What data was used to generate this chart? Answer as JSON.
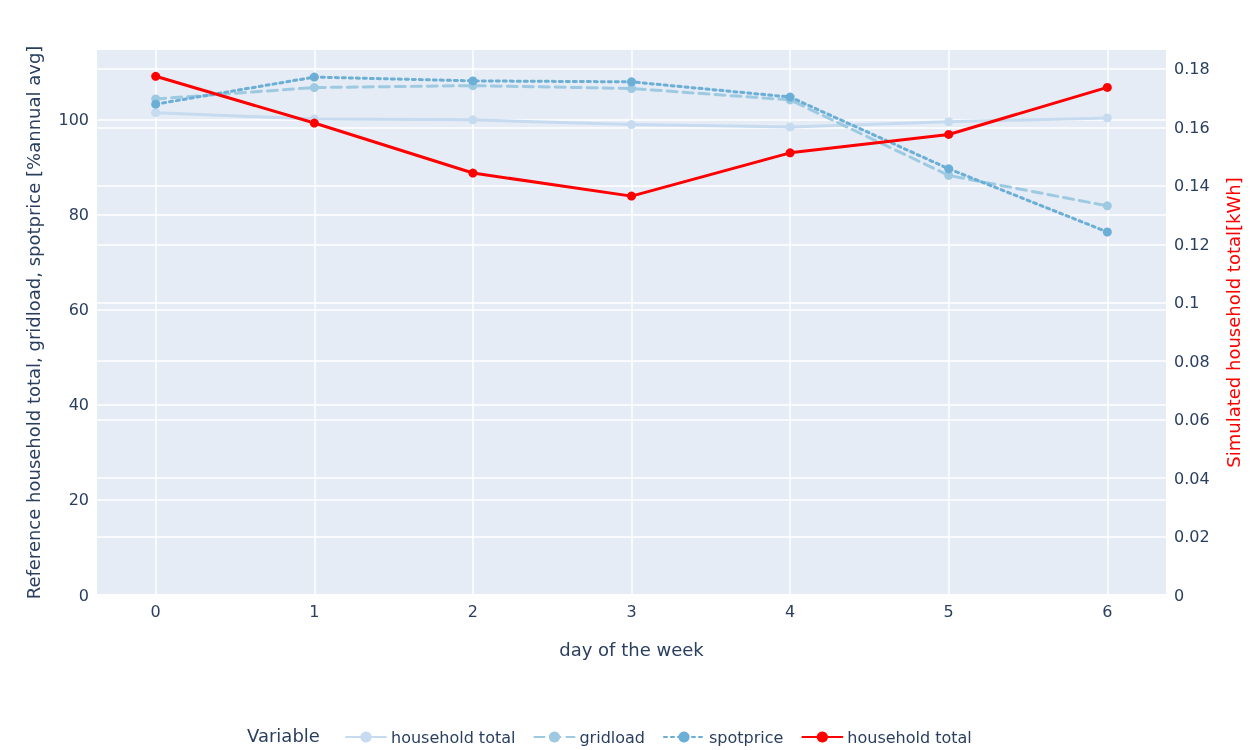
{
  "chart_data": {
    "type": "line",
    "xlabel": "day of the week",
    "ylabel": "Reference household total, gridload, spotprice [%annual avg]",
    "y2label": "Simulated household total[kWh]",
    "legend_title": "Variable",
    "x": [
      0,
      1,
      2,
      3,
      4,
      5,
      6
    ],
    "xlim": [
      -0.37,
      6.37
    ],
    "xticks": [
      0,
      1,
      2,
      3,
      4,
      5,
      6
    ],
    "ylim": [
      0,
      114.7
    ],
    "yticks": [
      0,
      20,
      40,
      60,
      80,
      100
    ],
    "y2lim": [
      0,
      0.1865
    ],
    "y2ticks": [
      0,
      0.02,
      0.04,
      0.06,
      0.08,
      0.1,
      0.12,
      0.14,
      0.16,
      0.18
    ],
    "grid": true,
    "legend": "bottom",
    "marker": "circle",
    "series": [
      {
        "name": "household total",
        "color": "#c6dbef",
        "line_style": "solid",
        "values": [
          101.5,
          100.2,
          100,
          99,
          98.5,
          99.6,
          100.4
        ]
      },
      {
        "name": "gridload",
        "color": "#9ecae1",
        "line_style": "dashed",
        "values": [
          104.4,
          106.8,
          107.2,
          106.6,
          104.2,
          88.3,
          81.9
        ]
      },
      {
        "name": "spotprice",
        "color": "#6baed6",
        "line_style": "dotted",
        "values": [
          103.3,
          109,
          108.2,
          108,
          104.8,
          89.7,
          76.4
        ]
      },
      {
        "name": "household total",
        "color": "#ff0000",
        "line_style": "solid",
        "axis": "y2",
        "values": [
          0.1775,
          0.1615,
          0.1444,
          0.1365,
          0.1513,
          0.1576,
          0.1737
        ]
      }
    ]
  }
}
